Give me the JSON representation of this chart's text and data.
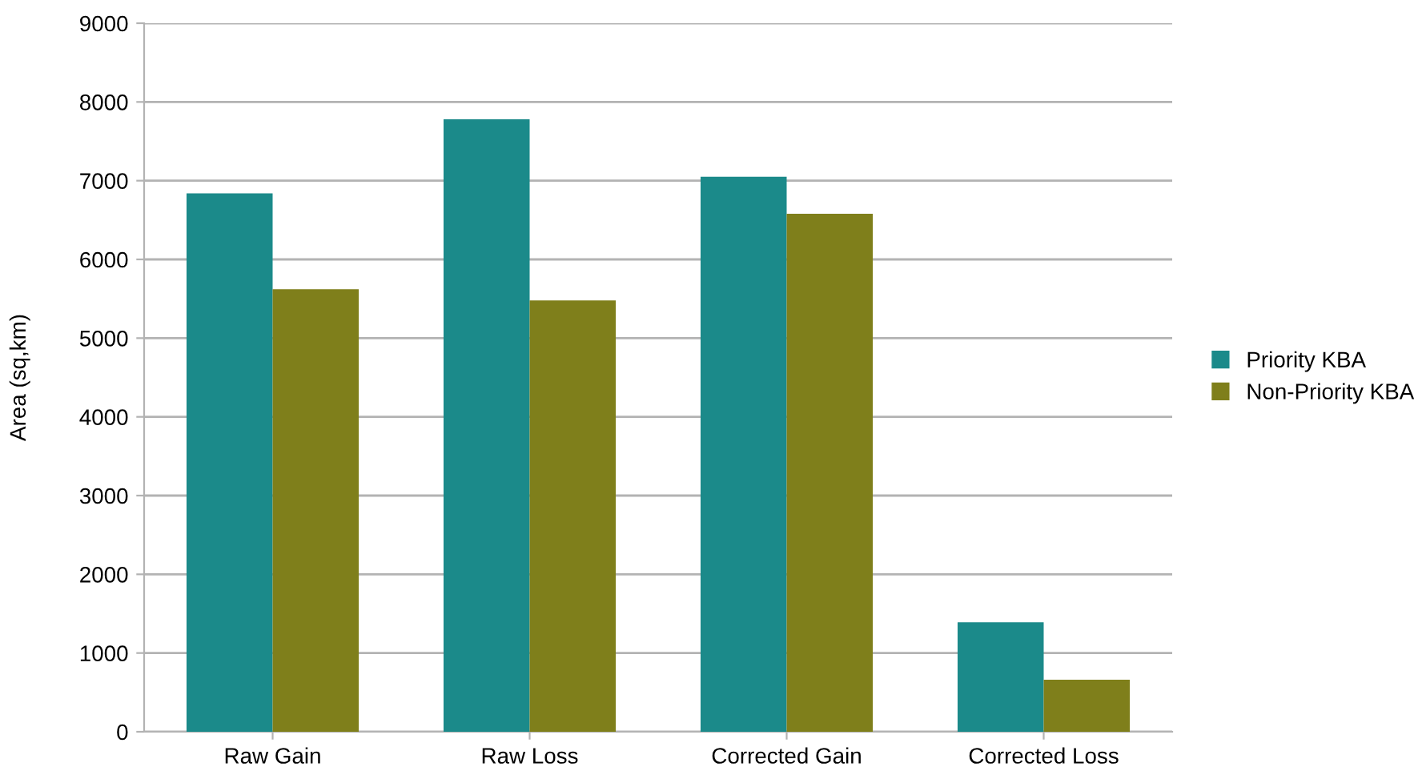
{
  "chart_data": {
    "type": "bar",
    "ylabel": "Area (sq,km)",
    "categories": [
      "Raw Gain",
      "Raw Loss",
      "Corrected Gain",
      "Corrected Loss"
    ],
    "series": [
      {
        "name": "Priority KBA",
        "color": "#1b8a8a",
        "values": [
          6840,
          7780,
          7050,
          1390
        ]
      },
      {
        "name": "Non-Priority KBA",
        "color": "#7f7f1b",
        "values": [
          5620,
          5480,
          6580,
          660
        ]
      }
    ],
    "ylim": [
      0,
      9000
    ],
    "yticks": [
      0,
      1000,
      2000,
      3000,
      4000,
      5000,
      6000,
      7000,
      8000,
      9000
    ],
    "grid": "y",
    "legend": "right"
  }
}
